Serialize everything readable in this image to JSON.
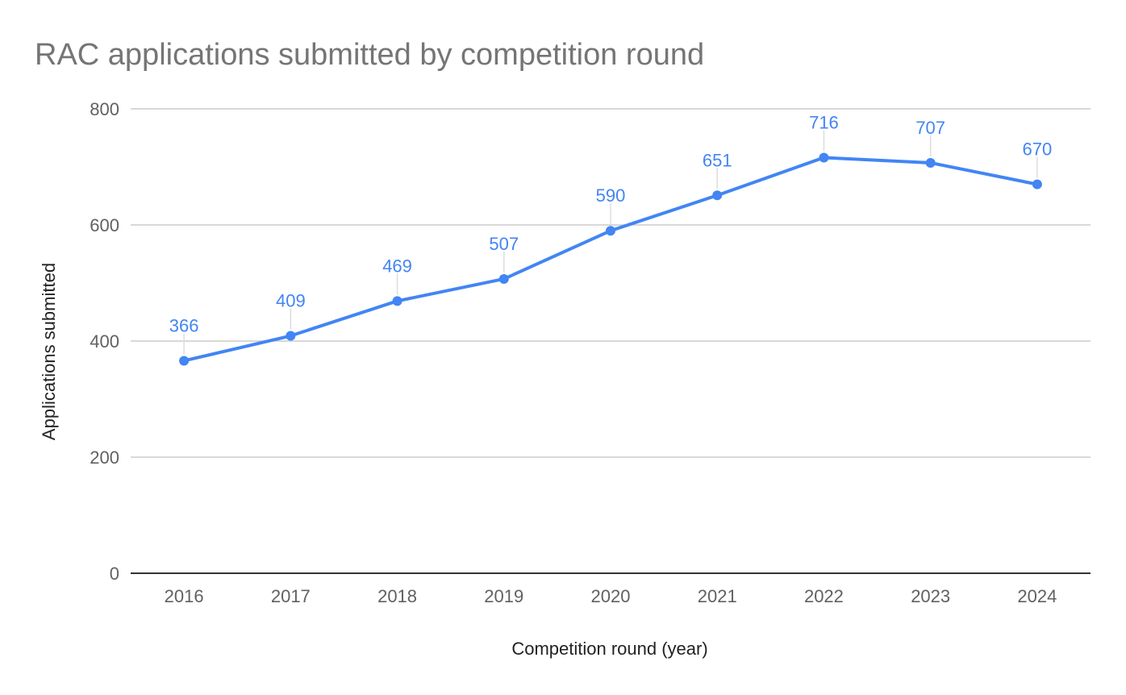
{
  "chart_data": {
    "type": "line",
    "title": "RAC applications submitted by competition round",
    "xlabel": "Competition round (year)",
    "ylabel": "Applications submitted",
    "categories": [
      "2016",
      "2017",
      "2018",
      "2019",
      "2020",
      "2021",
      "2022",
      "2023",
      "2024"
    ],
    "series": [
      {
        "values": [
          366,
          409,
          469,
          507,
          590,
          651,
          716,
          707,
          670
        ],
        "color": "#4285f4"
      }
    ],
    "ylim": [
      0,
      800
    ],
    "yticks": [
      0,
      200,
      400,
      600,
      800
    ],
    "grid": true,
    "legend": "none",
    "data_labels": true
  }
}
